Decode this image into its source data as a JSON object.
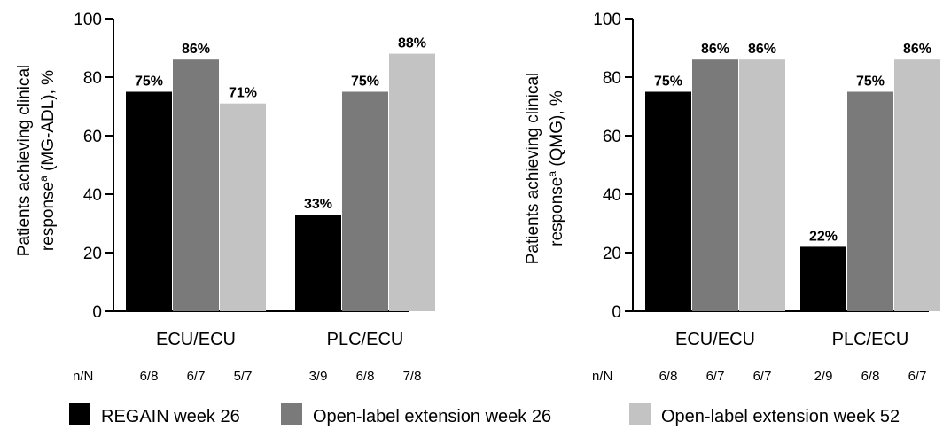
{
  "colors": {
    "regain_week_26": "#000000",
    "ole_week_26": "#7a7a7a",
    "ole_week_52": "#c3c3c3"
  },
  "legend": [
    {
      "label": "REGAIN week 26",
      "color_key": "regain_week_26"
    },
    {
      "label": "Open-label extension week 26",
      "color_key": "ole_week_26"
    },
    {
      "label": "Open-label extension week 52",
      "color_key": "ole_week_52"
    }
  ],
  "nn_label": "n/N",
  "chart_data": [
    {
      "type": "bar",
      "ylabel_line1": "Patients achieving clinical",
      "ylabel_line2": "response",
      "ylabel_sup": "a",
      "ylabel_line2_rest": " (MG-ADL), %",
      "ylim": [
        0,
        100
      ],
      "yticks": [
        0,
        20,
        40,
        60,
        80,
        100
      ],
      "categories": [
        "ECU/ECU",
        "PLC/ECU"
      ],
      "series": [
        {
          "name": "REGAIN week 26",
          "values": [
            75,
            33
          ],
          "labels": [
            "75%",
            "33%"
          ],
          "nN": [
            "6/8",
            "3/9"
          ]
        },
        {
          "name": "Open-label extension week 26",
          "values": [
            86,
            75
          ],
          "labels": [
            "86%",
            "75%"
          ],
          "nN": [
            "6/7",
            "6/8"
          ]
        },
        {
          "name": "Open-label extension week 52",
          "values": [
            71,
            88
          ],
          "labels": [
            "71%",
            "88%"
          ],
          "nN": [
            "5/7",
            "7/8"
          ]
        }
      ]
    },
    {
      "type": "bar",
      "ylabel_line1": "Patients achieving clinical",
      "ylabel_line2": "response",
      "ylabel_sup": "a",
      "ylabel_line2_rest": " (QMG), %",
      "ylim": [
        0,
        100
      ],
      "yticks": [
        0,
        20,
        40,
        60,
        80,
        100
      ],
      "categories": [
        "ECU/ECU",
        "PLC/ECU"
      ],
      "series": [
        {
          "name": "REGAIN week 26",
          "values": [
            75,
            22
          ],
          "labels": [
            "75%",
            "22%"
          ],
          "nN": [
            "6/8",
            "2/9"
          ]
        },
        {
          "name": "Open-label extension week 26",
          "values": [
            86,
            75
          ],
          "labels": [
            "86%",
            "75%"
          ],
          "nN": [
            "6/7",
            "6/8"
          ]
        },
        {
          "name": "Open-label extension week 52",
          "values": [
            86,
            86
          ],
          "labels": [
            "86%",
            "86%"
          ],
          "nN": [
            "6/7",
            "6/7"
          ]
        }
      ]
    }
  ]
}
